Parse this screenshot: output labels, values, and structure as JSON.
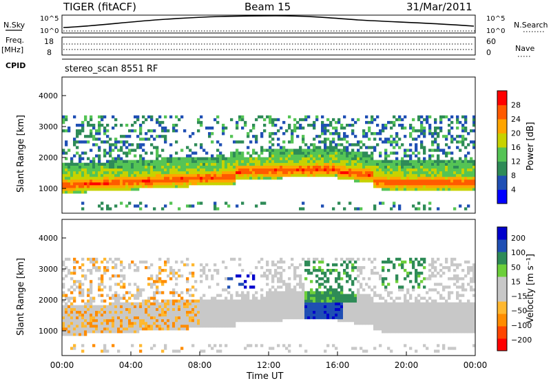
{
  "header": {
    "station": "TIGER (fitACF)",
    "beam": "Beam 15",
    "date": "31/Mar/2011"
  },
  "strips": {
    "nsky_label": "N.Sky",
    "nsearch_label": "N.Search",
    "nsky_ticks": [
      "10^5",
      "10^0"
    ],
    "nsky_right_ticks": [
      "10^5",
      "10^0"
    ],
    "freq_label_1": "Freq.",
    "freq_label_2": "[MHz]",
    "freq_ticks": [
      "18",
      "8"
    ],
    "nave_ticks": [
      "60",
      "0"
    ],
    "nave_label": "Nave",
    "cpid_label": "CPID",
    "cpid_value": "stereo_scan 8551 RF"
  },
  "colors": {
    "power_scale": [
      "#0000ff",
      "#1f4fb4",
      "#2e8b57",
      "#55c455",
      "#c8d200",
      "#ffa500",
      "#ff5a00",
      "#ff0000"
    ],
    "velocity_scale": [
      "#ff0000",
      "#ff4500",
      "#ff8c00",
      "#ffb830",
      "#c8c8c8",
      "#c8c8c8",
      "#6ccf3a",
      "#2e8b57",
      "#1f4fb4",
      "#0000cc"
    ]
  },
  "chart_data": [
    {
      "type": "heatmap",
      "name": "power",
      "ylabel": "Slant Range [km]",
      "yticks": [
        "4000",
        "3000",
        "2000",
        "1000"
      ],
      "ylim": [
        200,
        4600
      ],
      "xlim": [
        0,
        24
      ],
      "colorbar": {
        "label": "Power [dB]",
        "ticks": [
          "28",
          "24",
          "20",
          "16",
          "12",
          "8",
          "4"
        ],
        "range": [
          0,
          32
        ]
      }
    },
    {
      "type": "heatmap",
      "name": "velocity",
      "ylabel": "Slant Range [km]",
      "yticks": [
        "4000",
        "3000",
        "2000",
        "1000"
      ],
      "ylim": [
        200,
        4600
      ],
      "xlim": [
        0,
        24
      ],
      "xticks": [
        "00:00",
        "04:00",
        "08:00",
        "12:00",
        "16:00",
        "20:00",
        "00:00"
      ],
      "xlabel": "Time UT",
      "colorbar": {
        "label": "Velocity [m s⁻¹]",
        "ticks": [
          "200",
          "100",
          "50",
          "15",
          "−15",
          "−50",
          "−100",
          "−200"
        ]
      }
    }
  ]
}
